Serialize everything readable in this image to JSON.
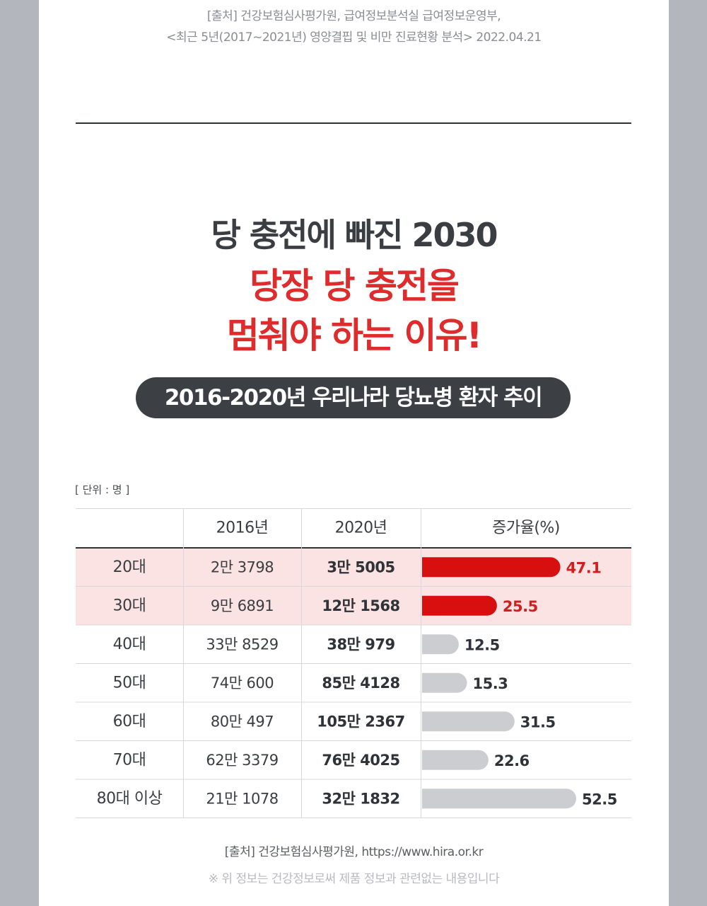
{
  "source_top": {
    "line1": "[출처] 건강보험심사평가원, 급여정보분석실 급여정보운영부,",
    "line2": "<최근 5년(2017~2021년) 영양결핍 및 비만 진료현황 분석> 2022.04.21"
  },
  "headline": {
    "line1": "당 충전에 빠진 2030",
    "line2": "당장 당 충전을",
    "line3": "멈춰야 하는 이유!"
  },
  "subtitle": "2016-2020년 우리나라 당뇨병 환자 추이",
  "unit_label": "[ 단위 : 명 ]",
  "chart_data": {
    "type": "table",
    "columns": [
      "",
      "2016년",
      "2020년",
      "증가율(%)"
    ],
    "rows": [
      {
        "age": "20대",
        "y2016": "2만 3798",
        "y2020": "3만 5005",
        "rate": 47.1,
        "highlight": true
      },
      {
        "age": "30대",
        "y2016": "9만 6891",
        "y2020": "12만 1568",
        "rate": 25.5,
        "highlight": true
      },
      {
        "age": "40대",
        "y2016": "33만 8529",
        "y2020": "38만 979",
        "rate": 12.5,
        "highlight": false
      },
      {
        "age": "50대",
        "y2016": "74만 600",
        "y2020": "85만 4128",
        "rate": 15.3,
        "highlight": false
      },
      {
        "age": "60대",
        "y2016": "80만 497",
        "y2020": "105만 2367",
        "rate": 31.5,
        "highlight": false
      },
      {
        "age": "70대",
        "y2016": "62만 3379",
        "y2020": "76만 4025",
        "rate": 22.6,
        "highlight": false
      },
      {
        "age": "80대 이상",
        "y2016": "21만 1078",
        "y2020": "32만 1832",
        "rate": 52.5,
        "highlight": false
      }
    ],
    "colors": {
      "highlight_row_bg": "#fbe3e4",
      "highlight_bar": "#d80f0f",
      "highlight_value": "#cf1f1f",
      "normal_bar": "#cbcdd0",
      "normal_value": "#2f3338"
    }
  },
  "source_bottom": "[출처] 건강보험심사평가원, https://www.hira.or.kr",
  "disclaimer": "※ 위 정보는 건강정보로써 제품 정보과 관련없는 내용입니다"
}
